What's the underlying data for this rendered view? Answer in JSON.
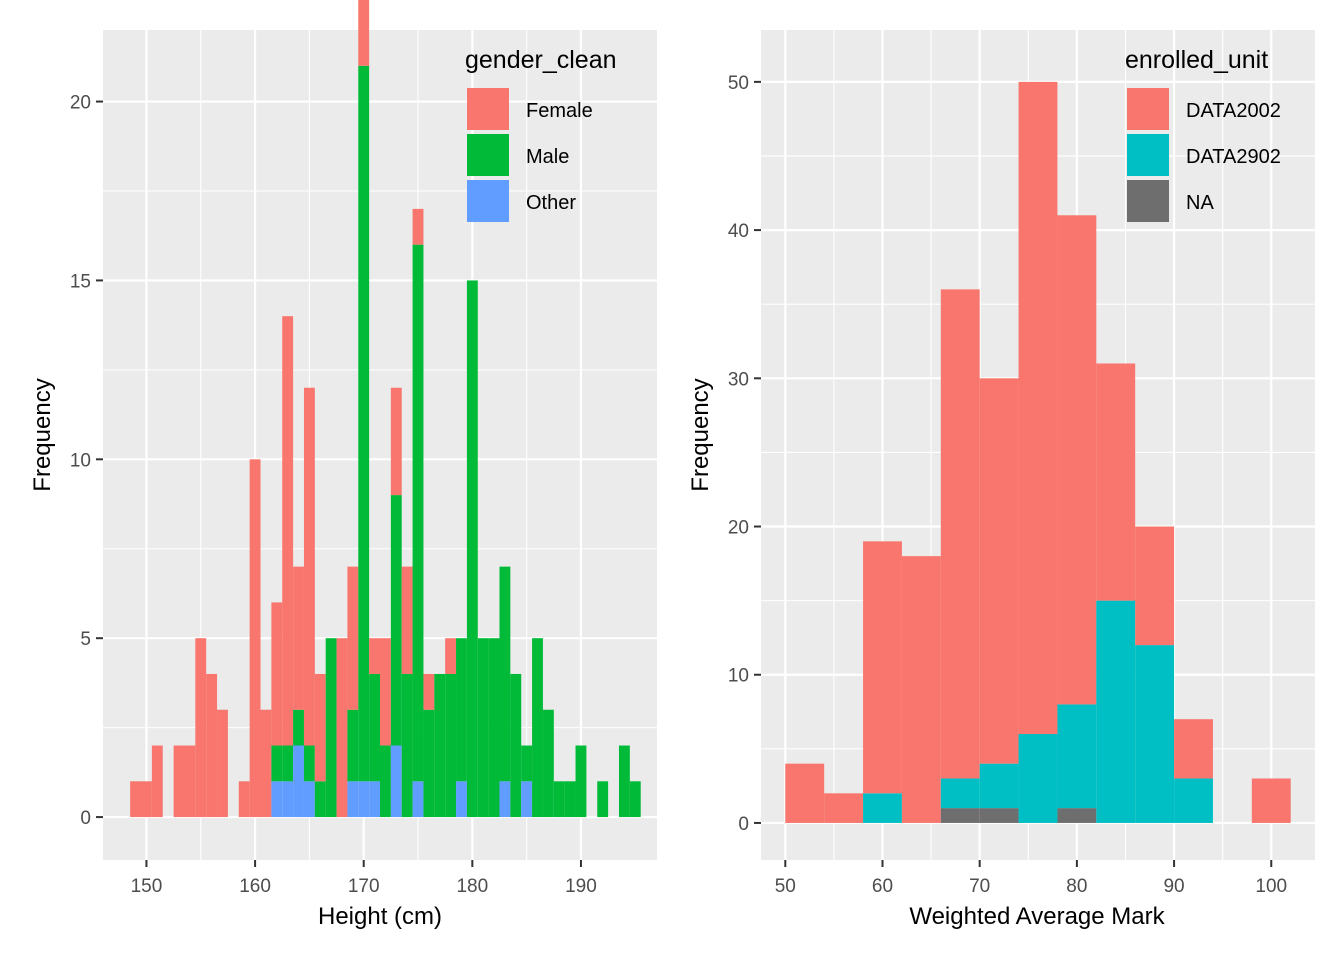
{
  "chart_data": [
    {
      "type": "bar",
      "stacked": true,
      "xlabel": "Height (cm)",
      "ylabel": "Frequency",
      "xlim": [
        146,
        197
      ],
      "ylim": [
        -1.2,
        22
      ],
      "xticks": [
        150,
        160,
        170,
        180,
        190
      ],
      "yticks": [
        0,
        5,
        10,
        15,
        20
      ],
      "binwidth": 1,
      "grid": true,
      "legend": {
        "title": "gender_clean",
        "position": "top-right"
      },
      "series": [
        {
          "name": "Female",
          "color": "#F8766D",
          "points": [
            [
              149,
              1
            ],
            [
              150,
              1
            ],
            [
              151,
              2
            ],
            [
              153,
              2
            ],
            [
              154,
              2
            ],
            [
              155,
              5
            ],
            [
              156,
              4
            ],
            [
              157,
              3
            ],
            [
              159,
              1
            ],
            [
              160,
              10
            ],
            [
              161,
              3
            ],
            [
              162,
              4
            ],
            [
              163,
              12
            ],
            [
              164,
              4
            ],
            [
              165,
              10
            ],
            [
              166,
              3
            ],
            [
              168,
              5
            ],
            [
              169,
              4
            ],
            [
              170,
              3
            ],
            [
              171,
              1
            ],
            [
              172,
              3
            ],
            [
              173,
              3
            ],
            [
              174,
              3
            ],
            [
              175,
              1
            ],
            [
              176,
              1
            ],
            [
              178,
              1
            ],
            [
              180,
              0
            ],
            [
              181,
              0
            ]
          ]
        },
        {
          "name": "Male",
          "color": "#00BA38",
          "points": [
            [
              162,
              1
            ],
            [
              163,
              1
            ],
            [
              164,
              1
            ],
            [
              165,
              1
            ],
            [
              166,
              1
            ],
            [
              167,
              5
            ],
            [
              168,
              0
            ],
            [
              169,
              2
            ],
            [
              170,
              20
            ],
            [
              171,
              3
            ],
            [
              172,
              2
            ],
            [
              173,
              7
            ],
            [
              174,
              4
            ],
            [
              175,
              15
            ],
            [
              176,
              3
            ],
            [
              177,
              4
            ],
            [
              178,
              4
            ],
            [
              179,
              4
            ],
            [
              180,
              15
            ],
            [
              181,
              5
            ],
            [
              182,
              5
            ],
            [
              183,
              6
            ],
            [
              184,
              4
            ],
            [
              185,
              1
            ],
            [
              186,
              5
            ],
            [
              187,
              3
            ],
            [
              188,
              1
            ],
            [
              189,
              1
            ],
            [
              190,
              2
            ],
            [
              192,
              1
            ],
            [
              194,
              2
            ],
            [
              195,
              1
            ]
          ]
        },
        {
          "name": "Other",
          "color": "#619CFF",
          "points": [
            [
              162,
              1
            ],
            [
              163,
              1
            ],
            [
              164,
              2
            ],
            [
              165,
              1
            ],
            [
              169,
              1
            ],
            [
              170,
              1
            ],
            [
              171,
              1
            ],
            [
              173,
              2
            ],
            [
              175,
              1
            ],
            [
              179,
              1
            ],
            [
              183,
              1
            ],
            [
              185,
              1
            ]
          ]
        }
      ]
    },
    {
      "type": "bar",
      "stacked": true,
      "xlabel": "Weighted Average Mark",
      "ylabel": "Frequency",
      "xlim": [
        47.5,
        104.5
      ],
      "ylim": [
        -2.5,
        53.5
      ],
      "xticks": [
        50,
        60,
        70,
        80,
        90,
        100
      ],
      "yticks": [
        0,
        10,
        20,
        30,
        40,
        50
      ],
      "binwidth": 4,
      "grid": true,
      "legend": {
        "title": "enrolled_unit",
        "position": "top-right"
      },
      "series": [
        {
          "name": "DATA2002",
          "color": "#F8766D",
          "points": [
            [
              52,
              4
            ],
            [
              56,
              2
            ],
            [
              60,
              17
            ],
            [
              64,
              18
            ],
            [
              68,
              33
            ],
            [
              72,
              26
            ],
            [
              76,
              44
            ],
            [
              80,
              33
            ],
            [
              84,
              16
            ],
            [
              88,
              8
            ],
            [
              92,
              4
            ],
            [
              100,
              3
            ]
          ]
        },
        {
          "name": "DATA2902",
          "color": "#00BFC4",
          "points": [
            [
              60,
              2
            ],
            [
              68,
              2
            ],
            [
              72,
              3
            ],
            [
              76,
              6
            ],
            [
              80,
              7
            ],
            [
              84,
              15
            ],
            [
              88,
              12
            ],
            [
              92,
              3
            ]
          ]
        },
        {
          "name": "NA",
          "color": "#6E6E6E",
          "points": [
            [
              68,
              1
            ],
            [
              72,
              1
            ],
            [
              80,
              1
            ]
          ]
        }
      ]
    }
  ]
}
